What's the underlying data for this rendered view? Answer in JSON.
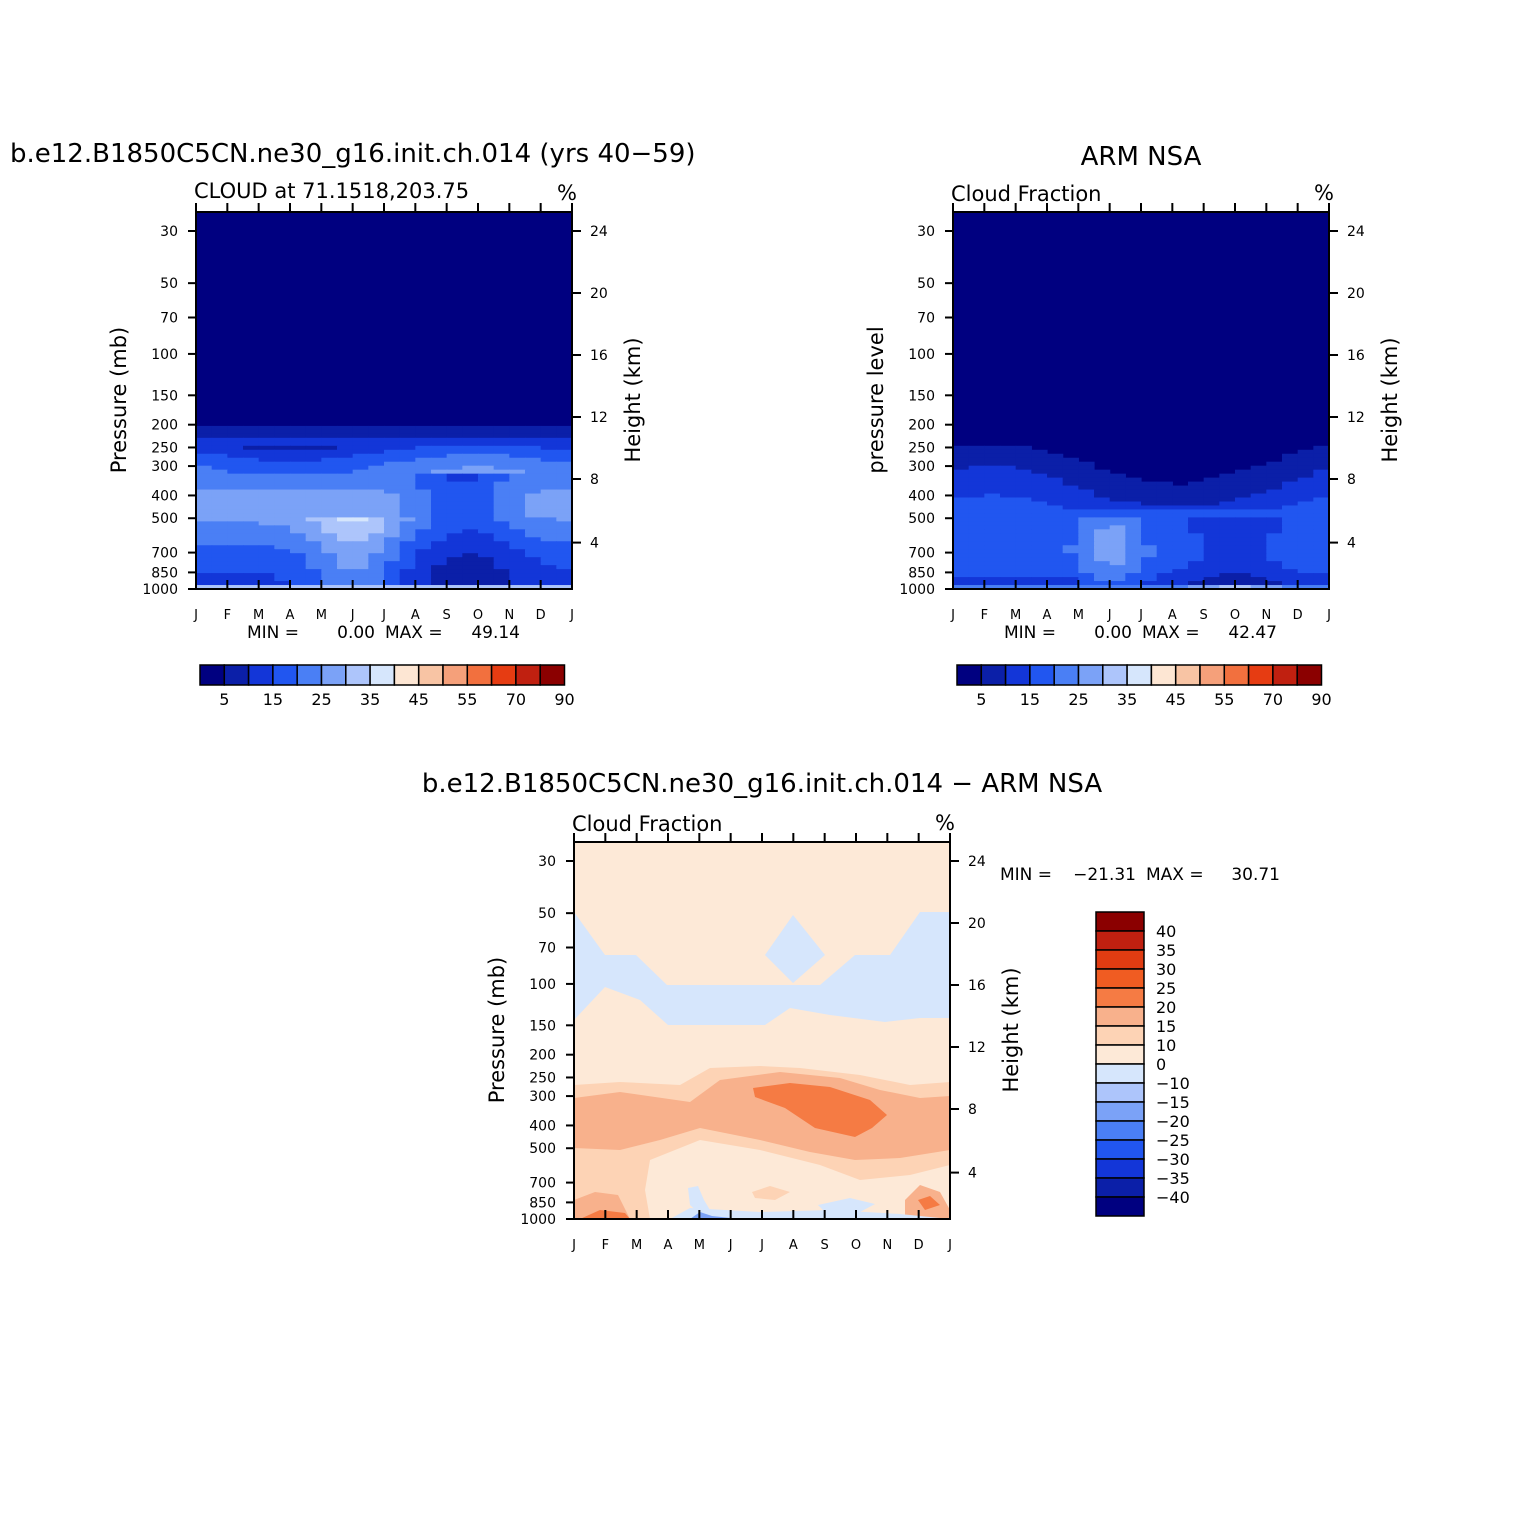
{
  "figure": {
    "colors": {
      "seq": [
        "#000080",
        "#0b1fa8",
        "#1336d8",
        "#2156f0",
        "#4a7ff5",
        "#7ba2f7",
        "#adc5fb",
        "#d6e6fc",
        "#fde6d3",
        "#f8c4a4",
        "#f5a07a",
        "#f2703e",
        "#e63c12",
        "#c02010",
        "#8b0000"
      ],
      "diff": [
        "#000080",
        "#0b1fa8",
        "#1336d8",
        "#2156f0",
        "#4a7ff5",
        "#7ba2f7",
        "#adc5fb",
        "#d6e6fc",
        "#fde9d7",
        "#fdd3b5",
        "#f8b18c",
        "#f57b44",
        "#f05c22",
        "#e03c12",
        "#c02010",
        "#8b0000"
      ]
    }
  },
  "chart_data": [
    {
      "id": "model",
      "type": "contour",
      "title": "b.e12.B1850C5CN.ne30_g16.init.ch.014 (yrs 40−59)",
      "subtitle_left": "CLOUD at 71.1518,203.75",
      "subtitle_right": "%",
      "ylabel": "Pressure (mb)",
      "ylabel_right": "Height (km)",
      "months": [
        "J",
        "F",
        "M",
        "A",
        "M",
        "J",
        "J",
        "A",
        "S",
        "O",
        "N",
        "D",
        "J"
      ],
      "pressure_ticks": [
        "30",
        "50",
        "70",
        "100",
        "150",
        "200",
        "250",
        "300",
        "400",
        "500",
        "700",
        "850",
        "1000"
      ],
      "height_ticks": [
        "24",
        "20",
        "16",
        "12",
        "8",
        "4"
      ],
      "min_label": "MIN =",
      "min_value": "0.00",
      "max_label": "MAX =",
      "max_value": "49.14",
      "colorbar_labels": [
        "5",
        "15",
        "25",
        "35",
        "45",
        "55",
        "70",
        "90"
      ],
      "profile": [
        {
          "p": 1000,
          "v": 40
        },
        {
          "p": 950,
          "v": 14
        },
        {
          "p": 850,
          "v": 15
        },
        {
          "p": 700,
          "v": 18
        },
        {
          "p": 500,
          "v": 26
        },
        {
          "p": 400,
          "v": 26
        },
        {
          "p": 300,
          "v": 21
        },
        {
          "p": 250,
          "v": 13
        },
        {
          "p": 200,
          "v": 5
        },
        {
          "p": 100,
          "v": 0.5
        },
        {
          "p": 30,
          "v": 0
        }
      ]
    },
    {
      "id": "obs",
      "type": "contour",
      "title": "ARM NSA",
      "subtitle_left": "Cloud Fraction",
      "subtitle_right": "%",
      "ylabel": "pressure level",
      "ylabel_right": "Height (km)",
      "months": [
        "J",
        "F",
        "M",
        "A",
        "M",
        "J",
        "J",
        "A",
        "S",
        "O",
        "N",
        "D",
        "J"
      ],
      "pressure_ticks": [
        "30",
        "50",
        "70",
        "100",
        "150",
        "200",
        "250",
        "300",
        "400",
        "500",
        "700",
        "850",
        "1000"
      ],
      "height_ticks": [
        "24",
        "20",
        "16",
        "12",
        "8",
        "4"
      ],
      "min_label": "MIN =",
      "min_value": "0.00",
      "max_label": "MAX =",
      "max_value": "42.47",
      "colorbar_labels": [
        "5",
        "15",
        "25",
        "35",
        "45",
        "55",
        "70",
        "90"
      ],
      "profile": [
        {
          "p": 1000,
          "v": 30
        },
        {
          "p": 950,
          "v": 12
        },
        {
          "p": 850,
          "v": 16
        },
        {
          "p": 700,
          "v": 19
        },
        {
          "p": 500,
          "v": 17
        },
        {
          "p": 400,
          "v": 11
        },
        {
          "p": 300,
          "v": 6
        },
        {
          "p": 250,
          "v": 2
        },
        {
          "p": 100,
          "v": 0
        },
        {
          "p": 30,
          "v": 0
        }
      ]
    },
    {
      "id": "diff",
      "type": "contour",
      "title": "b.e12.B1850C5CN.ne30_g16.init.ch.014 − ARM NSA",
      "subtitle_left": "Cloud Fraction",
      "subtitle_right": "%",
      "ylabel": "Pressure (mb)",
      "ylabel_right": "Height (km)",
      "months": [
        "J",
        "F",
        "M",
        "A",
        "M",
        "J",
        "J",
        "A",
        "S",
        "O",
        "N",
        "D",
        "J"
      ],
      "pressure_ticks": [
        "30",
        "50",
        "70",
        "100",
        "150",
        "200",
        "250",
        "300",
        "400",
        "500",
        "700",
        "850",
        "1000"
      ],
      "height_ticks": [
        "24",
        "20",
        "16",
        "12",
        "8",
        "4"
      ],
      "min_label": "MIN =",
      "min_value": "−21.31",
      "max_label": "MAX =",
      "max_value": "30.71",
      "colorbar_labels": [
        "40",
        "35",
        "30",
        "25",
        "20",
        "15",
        "10",
        "0",
        "−10",
        "−15",
        "−20",
        "−25",
        "−30",
        "−35",
        "−40"
      ]
    }
  ]
}
